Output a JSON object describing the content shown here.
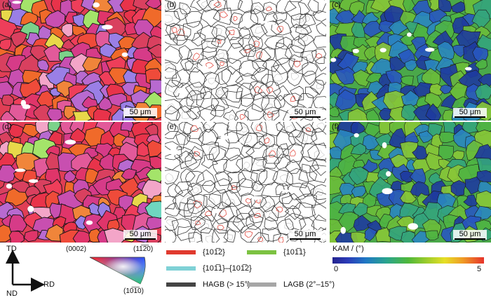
{
  "panels": [
    {
      "label": "(a)",
      "type": "ipf",
      "scale": "50 μm"
    },
    {
      "label": "(b)",
      "type": "boundary",
      "scale": "50 μm"
    },
    {
      "label": "(c)",
      "type": "kam",
      "scale": "50 μm"
    },
    {
      "label": "(d)",
      "type": "ipf",
      "scale": "50 μm"
    },
    {
      "label": "(e)",
      "type": "boundary",
      "scale": "50 μm"
    },
    {
      "label": "(f)",
      "type": "kam",
      "scale": "50 μm"
    }
  ],
  "axes": {
    "td": "TD",
    "rd": "RD",
    "nd": "ND"
  },
  "ipf": {
    "top_left": "(0002)",
    "top_right": "(11̅2̅0)",
    "bottom": "(10̅1̅0)"
  },
  "legend": {
    "twin1": "{101̅2}",
    "twin2": "{101̅1}",
    "twin3": "{101̅1}–{101̅2}",
    "hagb": "HAGB (> 15°)",
    "lagb": "LAGB (2°–15°)"
  },
  "colors": {
    "twin1": "#e03a2e",
    "twin2": "#7cc242",
    "twin3": "#7fd1d6",
    "hagb": "#444444",
    "lagb": "#a6a6a6"
  },
  "kam": {
    "title": "KAM / (°)",
    "min": "0",
    "max": "5"
  }
}
